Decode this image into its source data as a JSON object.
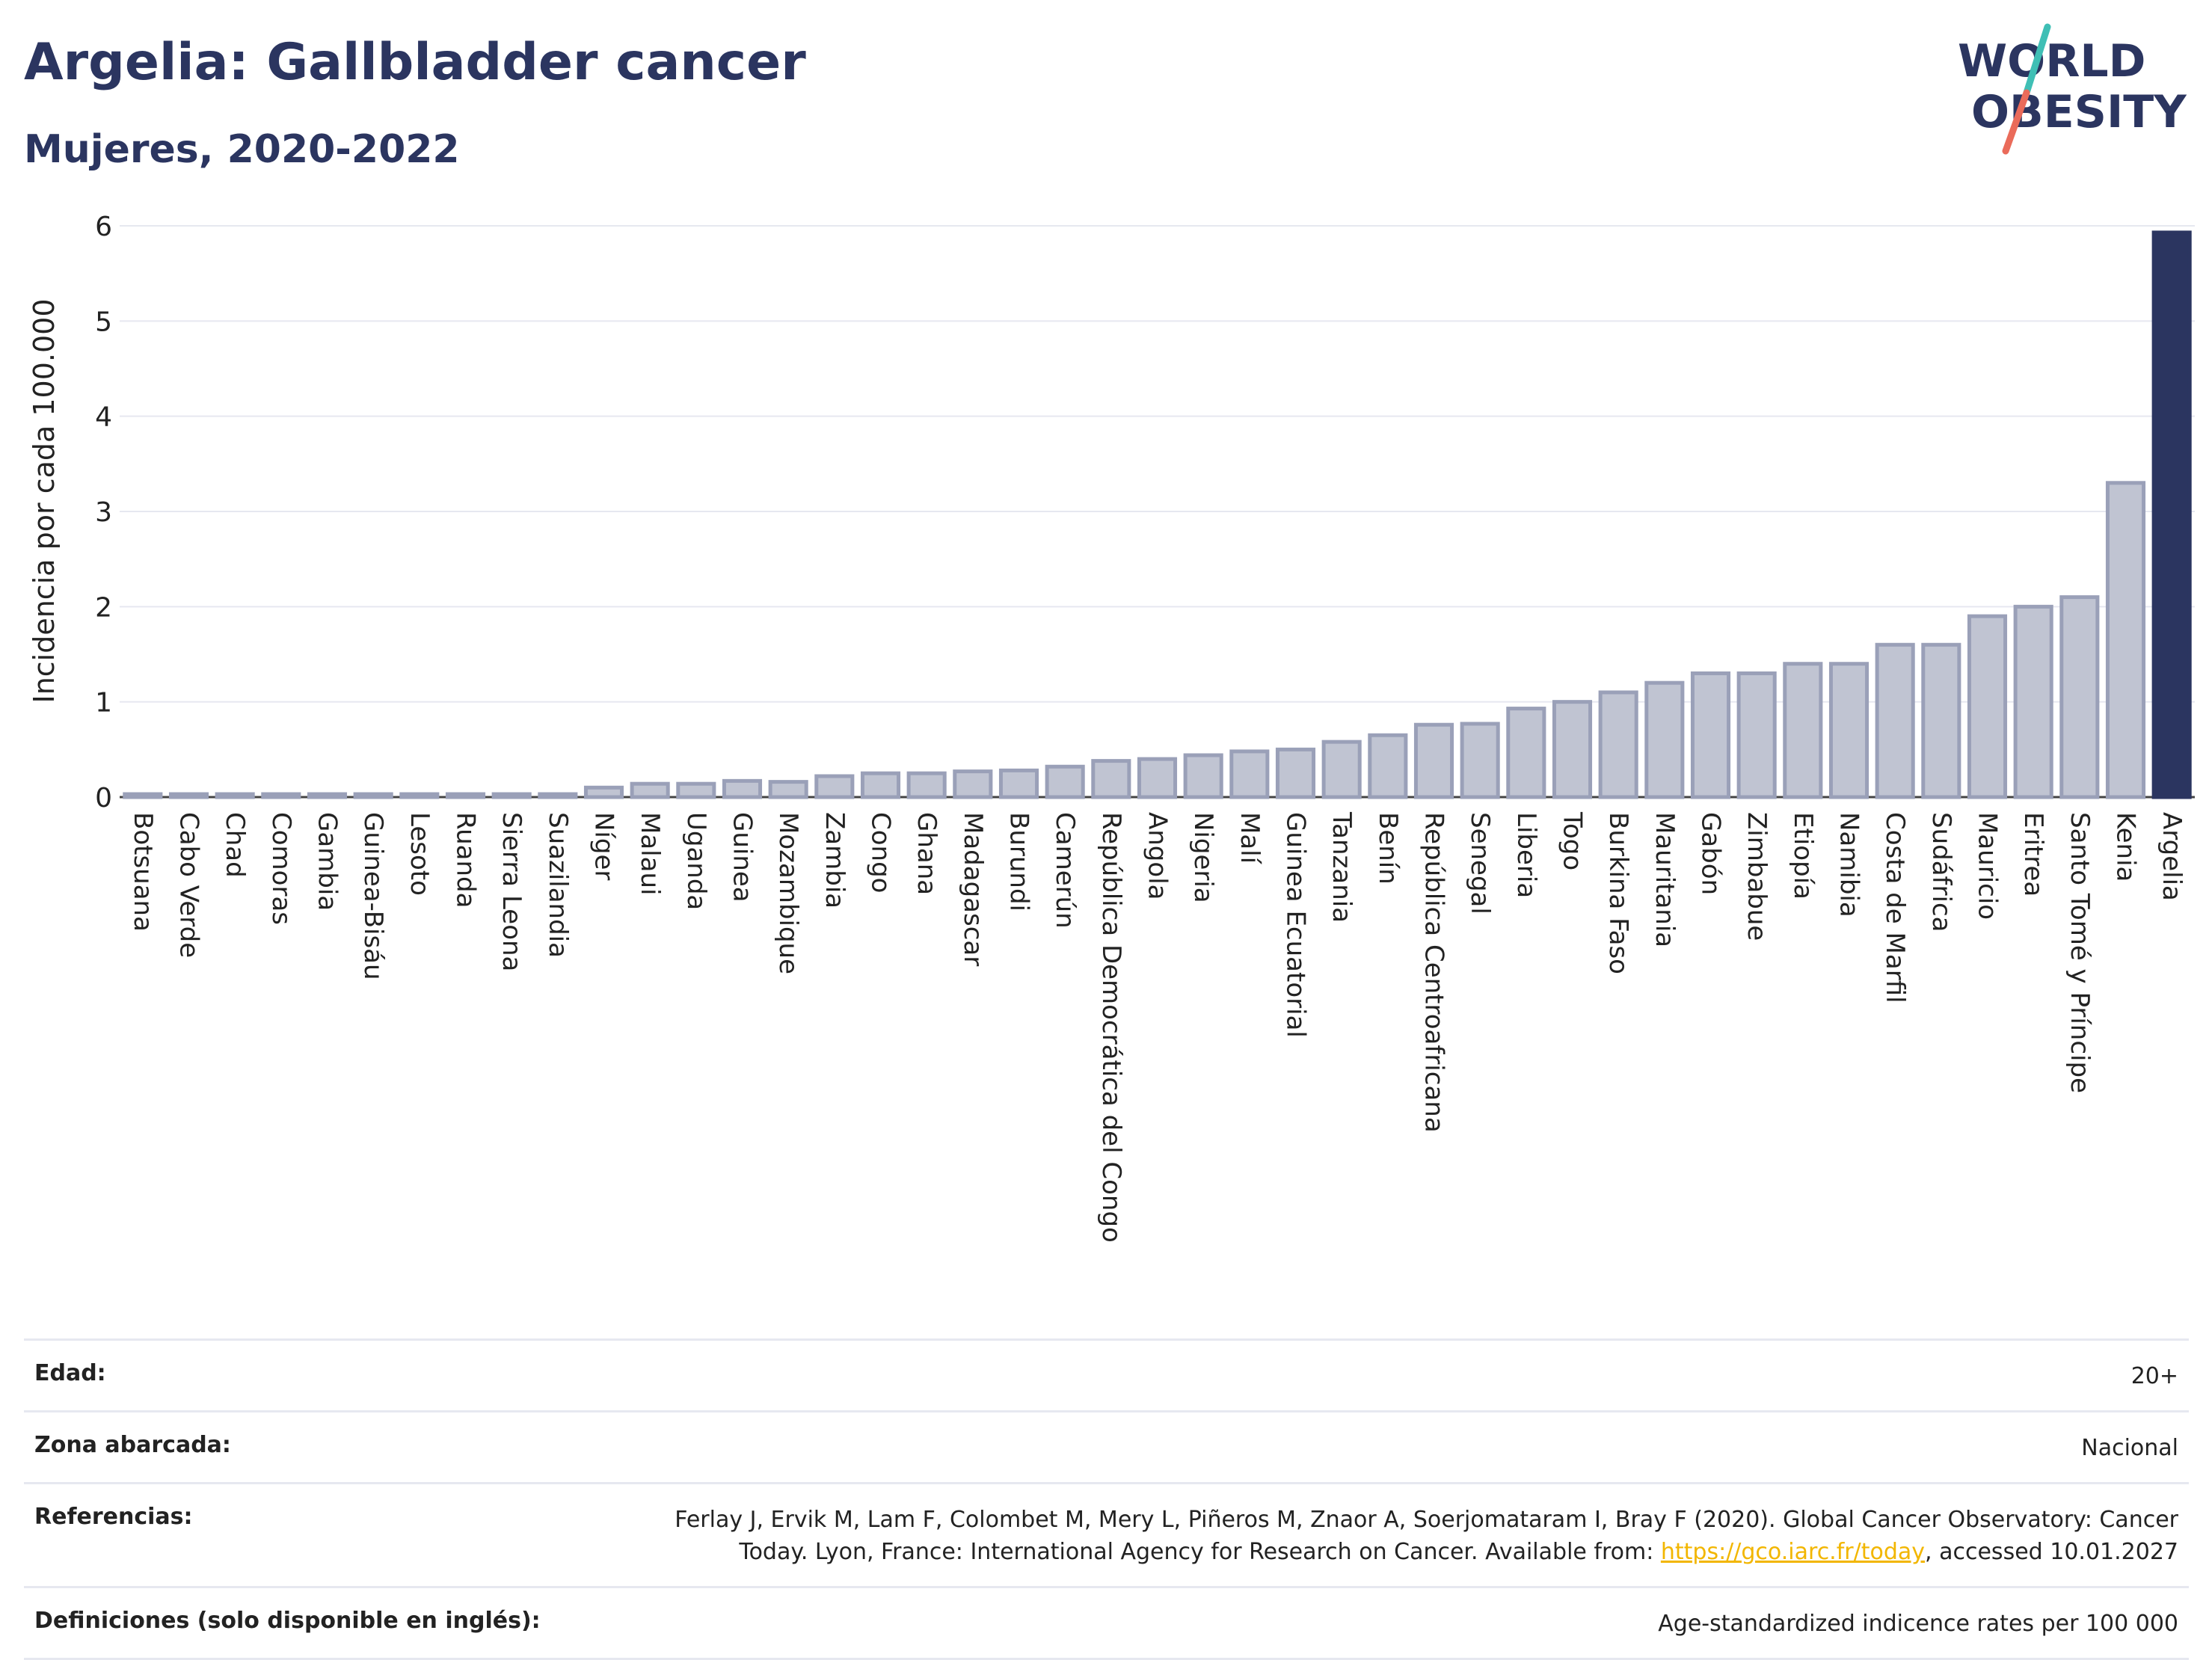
{
  "header": {
    "title": "Argelia: Gallbladder cancer",
    "subtitle": "Mujeres, 2020-2022"
  },
  "logo": {
    "line1": "WORLD",
    "line2": "OBESITY"
  },
  "colors": {
    "highlight": "#2b3560",
    "bar_fill": "#c0c4d2",
    "bar_stroke": "#9aa0b8",
    "grid": "#e6e8f0",
    "logo_teal": "#3fbfb5",
    "logo_coral": "#ea6b5a"
  },
  "chart_data": {
    "type": "bar",
    "title": "Argelia: Gallbladder cancer",
    "subtitle": "Mujeres, 2020-2022",
    "ylabel": "Incidencia por cada 100.000",
    "xlabel": "",
    "ylim": [
      0,
      6
    ],
    "yticks": [
      0,
      1,
      2,
      3,
      4,
      5,
      6
    ],
    "grid": true,
    "highlight_category": "Argelia",
    "categories": [
      "Botsuana",
      "Cabo Verde",
      "Chad",
      "Comoras",
      "Gambia",
      "Guinea-Bisáu",
      "Lesoto",
      "Ruanda",
      "Sierra Leona",
      "Suazilandia",
      "Níger",
      "Malaui",
      "Uganda",
      "Guinea",
      "Mozambique",
      "Zambia",
      "Congo",
      "Ghana",
      "Madagascar",
      "Burundi",
      "Camerún",
      "República Democrática del Congo",
      "Angola",
      "Nigeria",
      "Malí",
      "Guinea Ecuatorial",
      "Tanzania",
      "Benín",
      "República Centroafricana",
      "Senegal",
      "Liberia",
      "Togo",
      "Burkina Faso",
      "Mauritania",
      "Gabón",
      "Zimbabue",
      "Etiopía",
      "Namibia",
      "Costa de Marfil",
      "Sudáfrica",
      "Mauricio",
      "Eritrea",
      "Santo Tomé y Príncipe",
      "Kenia",
      "Argelia"
    ],
    "values": [
      0.0,
      0.0,
      0.0,
      0.0,
      0.0,
      0.0,
      0.0,
      0.0,
      0.0,
      0.0,
      0.1,
      0.14,
      0.14,
      0.17,
      0.16,
      0.22,
      0.25,
      0.25,
      0.27,
      0.28,
      0.32,
      0.38,
      0.4,
      0.44,
      0.48,
      0.5,
      0.58,
      0.65,
      0.76,
      0.77,
      0.93,
      1.0,
      1.1,
      1.2,
      1.3,
      1.3,
      1.4,
      1.4,
      1.6,
      1.6,
      1.9,
      2.0,
      2.1,
      3.3,
      5.93
    ]
  },
  "meta": [
    {
      "label": "Edad:",
      "value": "20+"
    },
    {
      "label": "Zona abarcada:",
      "value": "Nacional"
    },
    {
      "label": "Referencias:",
      "value_line1": "Ferlay J, Ervik M, Lam F, Colombet M, Mery L, Piñeros M, Znaor A, Soerjomataram I, Bray F (2020). Global Cancer Observatory: Cancer",
      "value_line2_pre": "Today. Lyon, France: International Agency for Research on Cancer. Available from: ",
      "value_link": "https://gco.iarc.fr/today",
      "value_line2_post": ", accessed 10.01.2027"
    },
    {
      "label": "Definiciones (solo disponible en inglés):",
      "value": "Age-standardized indicence rates per 100 000"
    }
  ]
}
